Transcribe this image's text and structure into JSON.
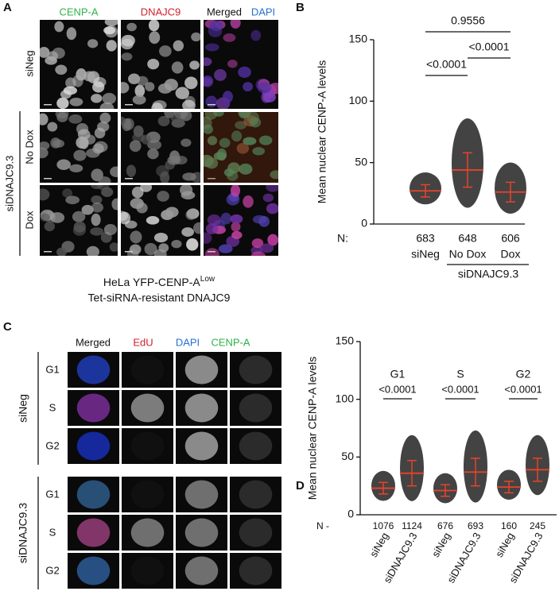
{
  "panel_labels": [
    "A",
    "B",
    "C",
    "D"
  ],
  "panel_a": {
    "columns": [
      "CENP-A",
      "DNAJC9",
      "Merged",
      "DAPI"
    ],
    "rows": [
      "siNeg",
      "No Dox",
      "Dox"
    ],
    "group": "siDNAJC9.3",
    "caption_line1": "HeLa YFP-CENP-A",
    "caption_sup": "Low",
    "caption_line2": "Tet-siRNA-resistant DNAJC9"
  },
  "panel_c": {
    "columns": [
      "Merged",
      "EdU",
      "DAPI",
      "CENP-A"
    ],
    "groups": [
      {
        "name": "siNeg",
        "rows": [
          "G1",
          "S",
          "G2"
        ]
      },
      {
        "name": "siDNAJC9.3",
        "rows": [
          "G1",
          "S",
          "G2"
        ]
      }
    ]
  },
  "chart_data": [
    {
      "type": "dot",
      "y_label": "Mean nuclear CENP-A levels",
      "categories": [
        "siNeg",
        "No Dox",
        "Dox"
      ],
      "group": "siDNAJC9.3",
      "n_label": "N:",
      "n": [
        683,
        648,
        606
      ],
      "values": [
        27,
        44,
        26
      ],
      "errors": [
        5,
        14,
        8
      ],
      "comparisons": [
        "<0.0001",
        "<0.0001",
        "0.9556"
      ],
      "ylim": [
        0,
        150
      ],
      "yticks": [
        0,
        50,
        100,
        150
      ],
      "color": "#222222",
      "mean_color": "#e8432b"
    },
    {
      "type": "dot",
      "y_label": "Mean nuclear CENP-A levels",
      "categories": [
        "siNeg",
        "siDNAJC9.3",
        "siNeg",
        "siDNAJC9.3",
        "siNeg",
        "siDNAJC9.3"
      ],
      "groups": [
        "G1",
        "S",
        "G2"
      ],
      "n_label": "N -",
      "n": [
        1076,
        1124,
        676,
        693,
        160,
        245
      ],
      "values": [
        23,
        36,
        21,
        37,
        24,
        39
      ],
      "errors": [
        5,
        11,
        5,
        12,
        5,
        10
      ],
      "comparisons": [
        "<0.0001",
        "<0.0001",
        "<0.0001"
      ],
      "ylim": [
        0,
        150
      ],
      "yticks": [
        0,
        50,
        100,
        150
      ],
      "color": "#222222",
      "mean_color": "#e8432b"
    }
  ]
}
